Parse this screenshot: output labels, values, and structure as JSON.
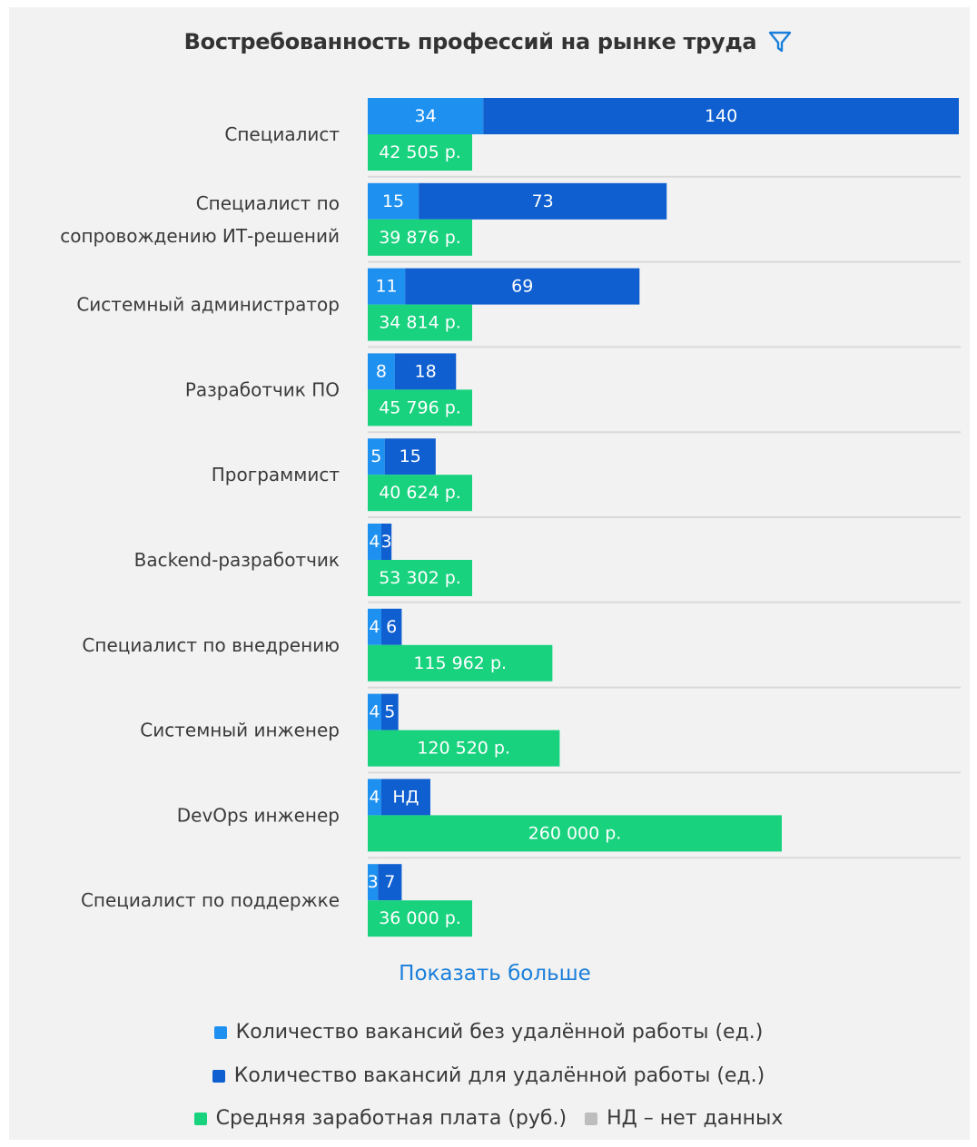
{
  "title": "Востребованность профессий на рынке труда",
  "show_more_label": "Показать больше",
  "colors": {
    "no_remote": "#1e90f0",
    "remote": "#0f5fd0",
    "salary": "#18d27e",
    "na": "#bdbdbd"
  },
  "legend": {
    "no_remote": "Количество вакансий без удалённой работы (ед.)",
    "remote": "Количество вакансий для удалённой работы (ед.)",
    "salary": "Средняя заработная плата (руб.)",
    "na": "НД – нет данных"
  },
  "chart_data": {
    "type": "bar",
    "orientation": "horizontal",
    "categories": [
      "Специалист",
      "Специалист по сопровождению ИТ-решений",
      "Системный администратор",
      "Разработчик ПО",
      "Программист",
      "Backend-разработчик",
      "Специалист по внедрению",
      "Системный инженер",
      "DevOps инженер",
      "Специалист по поддержке"
    ],
    "category_lines": [
      [
        "Специалист"
      ],
      [
        "Специалист по",
        "сопровождению ИТ-решений"
      ],
      [
        "Системный администратор"
      ],
      [
        "Разработчик ПО"
      ],
      [
        "Программист"
      ],
      [
        "Backend-разработчик"
      ],
      [
        "Специалист по внедрению"
      ],
      [
        "Системный инженер"
      ],
      [
        "DevOps инженер"
      ],
      [
        "Специалист по поддержке"
      ]
    ],
    "series": [
      {
        "name": "Количество вакансий без удалённой работы (ед.)",
        "values": [
          34,
          15,
          11,
          8,
          5,
          4,
          4,
          4,
          4,
          3
        ],
        "labels": [
          "34",
          "15",
          "11",
          "8",
          "5",
          "4",
          "4",
          "4",
          "4",
          "3"
        ]
      },
      {
        "name": "Количество вакансий для удалённой работы (ед.)",
        "values": [
          140,
          73,
          69,
          18,
          15,
          3,
          6,
          5,
          null,
          7
        ],
        "labels": [
          "140",
          "73",
          "69",
          "18",
          "15",
          "3",
          "6",
          "5",
          "НД",
          "7"
        ]
      },
      {
        "name": "Средняя заработная плата (руб.)",
        "values": [
          42505,
          39876,
          34814,
          45796,
          40624,
          53302,
          115962,
          120520,
          260000,
          36000
        ],
        "labels": [
          "42 505 р.",
          "39 876 р.",
          "34 814 р.",
          "45 796 р.",
          "40 624 р.",
          "53 302 р.",
          "115 962 р.",
          "120 520 р.",
          "260 000 р.",
          "36 000 р."
        ]
      }
    ],
    "stacked_series": [
      0,
      1
    ],
    "legend_position": "bottom",
    "grid": false
  }
}
